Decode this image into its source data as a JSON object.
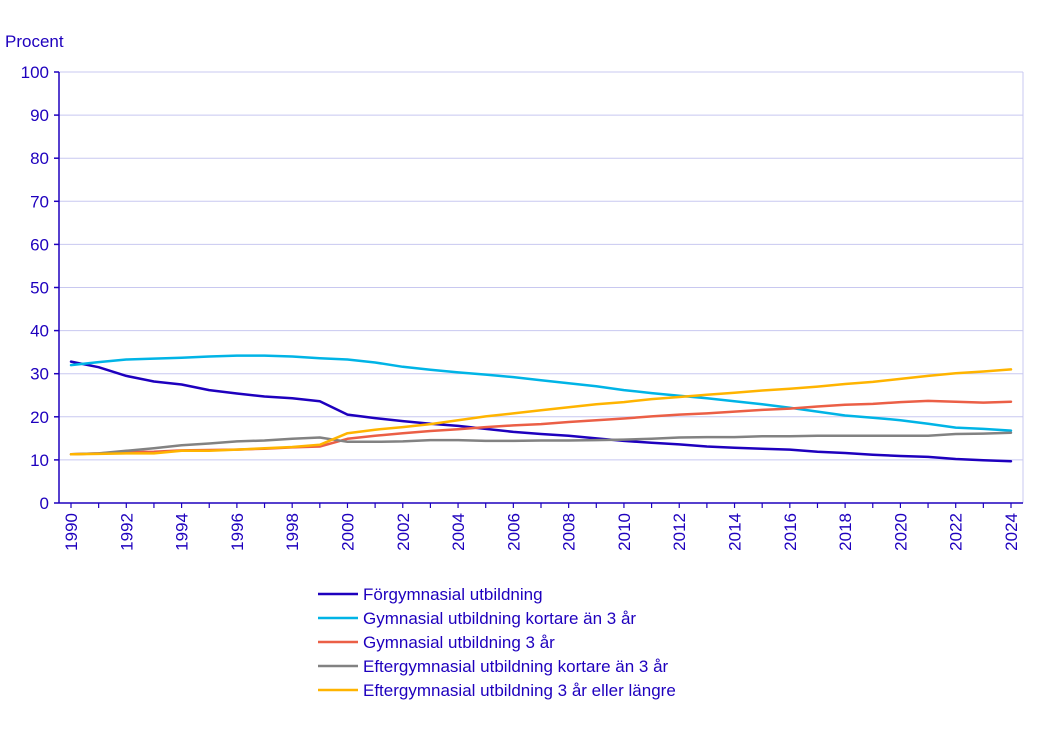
{
  "chart_data": {
    "type": "line",
    "title": "",
    "unit_label": "Procent",
    "xlabel": "",
    "ylabel": "Procent",
    "ylim": [
      0,
      100
    ],
    "yticks": [
      "0",
      "10",
      "20",
      "30",
      "40",
      "50",
      "60",
      "70",
      "80",
      "90",
      "100"
    ],
    "xticks": [
      "1990",
      "1992",
      "1994",
      "1996",
      "1998",
      "2000",
      "2002",
      "2004",
      "2006",
      "2008",
      "2010",
      "2012",
      "2014",
      "2016",
      "2018",
      "2020",
      "2022",
      "2024"
    ],
    "grid": true,
    "legend_position": "bottom",
    "x": [
      1990,
      1991,
      1992,
      1993,
      1994,
      1995,
      1996,
      1997,
      1998,
      1999,
      2000,
      2001,
      2002,
      2003,
      2004,
      2005,
      2006,
      2007,
      2008,
      2009,
      2010,
      2011,
      2012,
      2013,
      2014,
      2015,
      2016,
      2017,
      2018,
      2019,
      2020,
      2021,
      2022,
      2023,
      2024
    ],
    "series": [
      {
        "name": "Förgymnasial utbildning",
        "color": "#1e00be",
        "values": [
          32.8,
          31.5,
          29.5,
          28.2,
          27.5,
          26.2,
          25.4,
          24.7,
          24.3,
          23.6,
          20.5,
          19.7,
          19.0,
          18.4,
          17.9,
          17.2,
          16.5,
          16.0,
          15.6,
          15.0,
          14.4,
          14.0,
          13.6,
          13.1,
          12.8,
          12.6,
          12.4,
          11.9,
          11.6,
          11.2,
          10.9,
          10.7,
          10.2,
          9.9,
          9.7
        ]
      },
      {
        "name": "Gymnasial utbildning kortare än 3 år",
        "color": "#00b4e6",
        "values": [
          32.0,
          32.7,
          33.3,
          33.5,
          33.7,
          34.0,
          34.2,
          34.2,
          34.0,
          33.6,
          33.3,
          32.6,
          31.6,
          30.9,
          30.3,
          29.8,
          29.2,
          28.5,
          27.8,
          27.1,
          26.2,
          25.5,
          24.9,
          24.3,
          23.6,
          22.9,
          22.1,
          21.2,
          20.3,
          19.8,
          19.2,
          18.4,
          17.5,
          17.2,
          16.8
        ]
      },
      {
        "name": "Gymnasial utbildning 3 år",
        "color": "#eb5f46",
        "values": [
          11.3,
          11.5,
          11.8,
          11.9,
          12.2,
          12.3,
          12.4,
          12.6,
          12.9,
          13.1,
          14.9,
          15.6,
          16.2,
          16.7,
          17.1,
          17.6,
          18.0,
          18.3,
          18.8,
          19.2,
          19.6,
          20.1,
          20.5,
          20.8,
          21.2,
          21.6,
          21.9,
          22.4,
          22.8,
          23.0,
          23.4,
          23.7,
          23.5,
          23.3,
          23.5
        ]
      },
      {
        "name": "Eftergymnasial utbildning kortare än 3 år",
        "color": "#828282",
        "values": [
          11.3,
          11.5,
          12.1,
          12.7,
          13.4,
          13.8,
          14.3,
          14.5,
          14.9,
          15.2,
          14.2,
          14.2,
          14.3,
          14.6,
          14.6,
          14.4,
          14.4,
          14.5,
          14.5,
          14.6,
          14.7,
          14.9,
          15.2,
          15.3,
          15.3,
          15.5,
          15.5,
          15.6,
          15.6,
          15.6,
          15.6,
          15.6,
          16.0,
          16.1,
          16.3
        ]
      },
      {
        "name": "Eftergymnasial utbildning 3 år eller längre",
        "color": "#ffb400",
        "values": [
          11.3,
          11.4,
          11.5,
          11.5,
          12.1,
          12.1,
          12.4,
          12.7,
          13.0,
          13.5,
          16.2,
          17.0,
          17.6,
          18.3,
          19.2,
          20.1,
          20.8,
          21.5,
          22.2,
          22.9,
          23.4,
          24.1,
          24.6,
          25.1,
          25.6,
          26.1,
          26.5,
          27.0,
          27.6,
          28.1,
          28.8,
          29.5,
          30.1,
          30.5,
          31.0
        ]
      }
    ]
  }
}
